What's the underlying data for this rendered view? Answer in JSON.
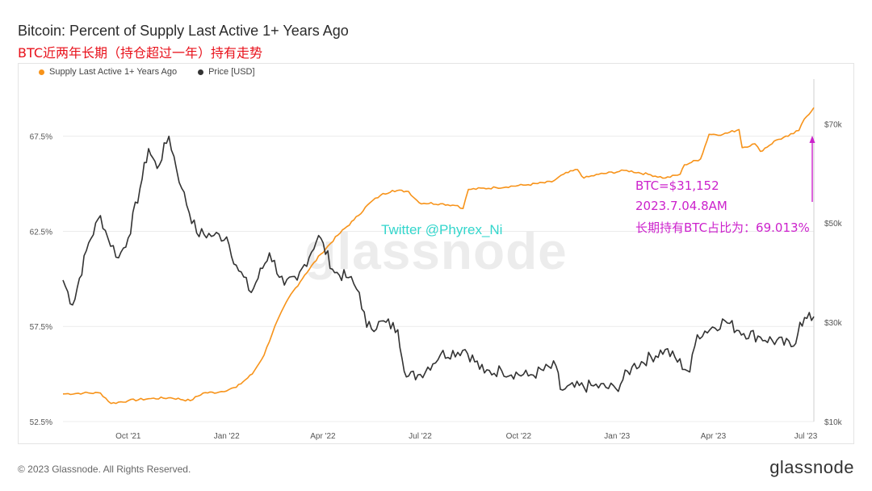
{
  "header": {
    "title": "Bitcoin: Percent of Supply Last Active 1+ Years Ago",
    "subtitle": "BTC近两年长期（持仓超过一年）持有走势"
  },
  "legend": {
    "items": [
      {
        "label": "Supply Last Active 1+ Years Ago",
        "color": "#f7931a"
      },
      {
        "label": "Price [USD]",
        "color": "#333333"
      }
    ]
  },
  "watermark": "glassnode",
  "twitter_handle": "Twitter @Phyrex_Ni",
  "annotation": {
    "line1": "BTC=$31,152",
    "line2": "2023.7.04.8AM",
    "line3": "长期持有BTC占比为：69.013%",
    "color": "#cc22cc"
  },
  "footer": {
    "copyright": "© 2023 Glassnode. All Rights Reserved.",
    "brand": "glassnode"
  },
  "chart_data": {
    "type": "line",
    "x_axis": {
      "ticks": [
        "Oct '21",
        "Jan '22",
        "Apr '22",
        "Jul '22",
        "Oct '22",
        "Jan '23",
        "Apr '23",
        "Jul '23"
      ],
      "range": [
        "2021-08-01",
        "2023-07-04"
      ]
    },
    "y_left": {
      "ticks": [
        "52.5%",
        "57.5%",
        "62.5%",
        "67.5%"
      ],
      "range": [
        52.5,
        70.5
      ]
    },
    "y_right": {
      "ticks": [
        "$10k",
        "$30k",
        "$50k",
        "$70k"
      ],
      "range": [
        10000,
        79000
      ]
    },
    "grid": true,
    "legend_position": "top-left",
    "series": [
      {
        "name": "Supply Last Active 1+ Years Ago",
        "axis": "left",
        "color": "#f7931a",
        "points": [
          [
            "2021-08-01",
            53.95
          ],
          [
            "2021-08-20",
            54.0
          ],
          [
            "2021-09-05",
            54.0
          ],
          [
            "2021-09-15",
            53.45
          ],
          [
            "2021-10-01",
            53.6
          ],
          [
            "2021-10-20",
            53.7
          ],
          [
            "2021-11-10",
            53.75
          ],
          [
            "2021-11-28",
            53.6
          ],
          [
            "2021-12-10",
            54.0
          ],
          [
            "2021-12-25",
            54.05
          ],
          [
            "2022-01-10",
            54.3
          ],
          [
            "2022-01-25",
            55.0
          ],
          [
            "2022-02-05",
            56.0
          ],
          [
            "2022-02-15",
            57.5
          ],
          [
            "2022-02-28",
            59.0
          ],
          [
            "2022-03-15",
            60.2
          ],
          [
            "2022-03-30",
            61.3
          ],
          [
            "2022-04-15",
            62.3
          ],
          [
            "2022-04-30",
            63.1
          ],
          [
            "2022-05-15",
            64.0
          ],
          [
            "2022-05-25",
            64.4
          ],
          [
            "2022-06-05",
            64.65
          ],
          [
            "2022-06-20",
            64.6
          ],
          [
            "2022-06-30",
            64.0
          ],
          [
            "2022-07-20",
            63.95
          ],
          [
            "2022-08-05",
            63.85
          ],
          [
            "2022-08-10",
            63.7
          ],
          [
            "2022-08-15",
            64.7
          ],
          [
            "2022-09-10",
            64.8
          ],
          [
            "2022-10-10",
            64.95
          ],
          [
            "2022-11-01",
            65.1
          ],
          [
            "2022-11-12",
            65.5
          ],
          [
            "2022-11-25",
            65.75
          ],
          [
            "2022-12-01",
            65.3
          ],
          [
            "2022-12-15",
            65.5
          ],
          [
            "2023-01-10",
            65.7
          ],
          [
            "2023-01-30",
            65.5
          ],
          [
            "2023-02-15",
            65.3
          ],
          [
            "2023-03-01",
            65.5
          ],
          [
            "2023-03-05",
            66.0
          ],
          [
            "2023-03-20",
            66.3
          ],
          [
            "2023-03-28",
            67.6
          ],
          [
            "2023-04-10",
            67.6
          ],
          [
            "2023-04-25",
            67.85
          ],
          [
            "2023-04-28",
            66.9
          ],
          [
            "2023-05-10",
            67.1
          ],
          [
            "2023-05-15",
            66.7
          ],
          [
            "2023-05-30",
            67.3
          ],
          [
            "2023-06-10",
            67.5
          ],
          [
            "2023-06-20",
            67.8
          ],
          [
            "2023-06-25",
            68.4
          ],
          [
            "2023-07-04",
            69.0
          ]
        ]
      },
      {
        "name": "Price [USD]",
        "axis": "right",
        "color": "#333333",
        "points": [
          [
            "2021-08-01",
            38500
          ],
          [
            "2021-08-10",
            33500
          ],
          [
            "2021-08-25",
            46000
          ],
          [
            "2021-09-05",
            51500
          ],
          [
            "2021-09-12",
            47000
          ],
          [
            "2021-09-22",
            43000
          ],
          [
            "2021-10-01",
            47000
          ],
          [
            "2021-10-12",
            57000
          ],
          [
            "2021-10-20",
            65000
          ],
          [
            "2021-10-28",
            61000
          ],
          [
            "2021-11-08",
            67500
          ],
          [
            "2021-11-20",
            57000
          ],
          [
            "2021-12-04",
            48000
          ],
          [
            "2021-12-20",
            47500
          ],
          [
            "2022-01-01",
            47200
          ],
          [
            "2022-01-10",
            41500
          ],
          [
            "2022-01-24",
            36000
          ],
          [
            "2022-02-10",
            44000
          ],
          [
            "2022-02-24",
            37500
          ],
          [
            "2022-03-08",
            38500
          ],
          [
            "2022-03-28",
            47500
          ],
          [
            "2022-04-12",
            40000
          ],
          [
            "2022-04-25",
            39000
          ],
          [
            "2022-05-05",
            36000
          ],
          [
            "2022-05-12",
            29000
          ],
          [
            "2022-05-30",
            30000
          ],
          [
            "2022-06-10",
            28500
          ],
          [
            "2022-06-18",
            19000
          ],
          [
            "2022-07-01",
            19500
          ],
          [
            "2022-07-20",
            23500
          ],
          [
            "2022-08-12",
            24500
          ],
          [
            "2022-08-30",
            19800
          ],
          [
            "2022-09-15",
            20300
          ],
          [
            "2022-10-10",
            19200
          ],
          [
            "2022-11-05",
            21200
          ],
          [
            "2022-11-09",
            16500
          ],
          [
            "2022-12-10",
            17200
          ],
          [
            "2022-12-31",
            16600
          ],
          [
            "2023-01-15",
            21000
          ],
          [
            "2023-02-15",
            24500
          ],
          [
            "2023-03-10",
            20000
          ],
          [
            "2023-03-17",
            27500
          ],
          [
            "2023-04-12",
            30300
          ],
          [
            "2023-04-25",
            28300
          ],
          [
            "2023-05-15",
            27000
          ],
          [
            "2023-06-15",
            25200
          ],
          [
            "2023-06-21",
            30000
          ],
          [
            "2023-07-04",
            31152
          ]
        ]
      }
    ],
    "annotations": [
      {
        "date": "2023-07-04",
        "text": "BTC=$31,152"
      },
      {
        "date": "2023-07-04",
        "text": "2023.7.04.8AM"
      },
      {
        "date": "2023-07-04",
        "text": "长期持有BTC占比为：69.013%"
      }
    ]
  }
}
